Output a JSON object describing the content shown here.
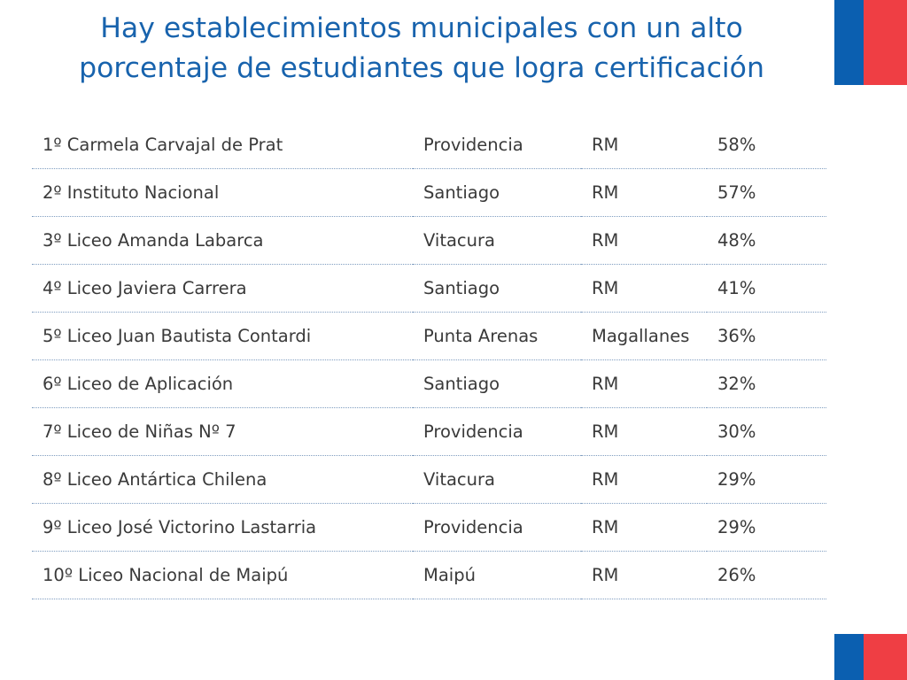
{
  "slide": {
    "title_line1": "Hay establecimientos municipales con un alto",
    "title_line2": "porcentaje de estudiantes que logra certificación"
  },
  "colors": {
    "title": "#1863ad",
    "flag_blue": "#0b5fb0",
    "flag_red": "#ef3e44",
    "row_divider": "#7f9dc0"
  },
  "rows": [
    {
      "school": "1º Carmela Carvajal de Prat",
      "comuna": "Providencia",
      "region": "RM",
      "percent": "58%"
    },
    {
      "school": "2º Instituto Nacional",
      "comuna": "Santiago",
      "region": "RM",
      "percent": "57%"
    },
    {
      "school": "3º Liceo Amanda Labarca",
      "comuna": "Vitacura",
      "region": "RM",
      "percent": "48%"
    },
    {
      "school": "4º Liceo Javiera Carrera",
      "comuna": "Santiago",
      "region": "RM",
      "percent": "41%"
    },
    {
      "school": "5º Liceo Juan Bautista Contardi",
      "comuna": "Punta Arenas",
      "region": "Magallanes",
      "percent": "36%"
    },
    {
      "school": "6º Liceo de Aplicación",
      "comuna": "Santiago",
      "region": "RM",
      "percent": "32%"
    },
    {
      "school": "7º Liceo de Niñas Nº 7",
      "comuna": "Providencia",
      "region": "RM",
      "percent": "30%"
    },
    {
      "school": "8º Liceo Antártica Chilena",
      "comuna": "Vitacura",
      "region": "RM",
      "percent": "29%"
    },
    {
      "school": "9º Liceo José Victorino Lastarria",
      "comuna": "Providencia",
      "region": "RM",
      "percent": "29%"
    },
    {
      "school": "10º Liceo Nacional de Maipú",
      "comuna": "Maipú",
      "region": "RM",
      "percent": "26%"
    }
  ]
}
